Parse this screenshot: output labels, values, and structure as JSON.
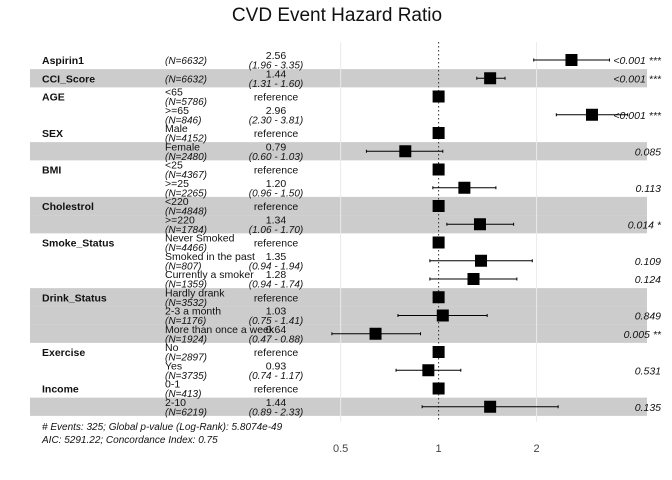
{
  "chart_data": {
    "type": "forest",
    "title": "CVD Event Hazard Ratio",
    "x_scale": "log",
    "xlim": [
      0.42,
      3.2
    ],
    "reference_line": 1,
    "x_ticks": [
      {
        "value": 0.5,
        "label": "0.5"
      },
      {
        "value": 1,
        "label": "1"
      },
      {
        "value": 2,
        "label": "2"
      }
    ],
    "shade_color": "#cccccc",
    "rows": [
      {
        "var": "Aspirin1",
        "level": "",
        "n": "(N=6632)",
        "est": "2.56",
        "ci": "(1.96 - 3.35)",
        "hr": 2.56,
        "lo": 1.96,
        "hi": 3.35,
        "p": "<0.001 ***",
        "ref": false,
        "shade": false
      },
      {
        "var": "CCI_Score",
        "level": "",
        "n": "(N=6632)",
        "est": "1.44",
        "ci": "(1.31 - 1.60)",
        "hr": 1.44,
        "lo": 1.31,
        "hi": 1.6,
        "p": "<0.001 ***",
        "ref": false,
        "shade": true
      },
      {
        "var": "AGE",
        "level": "<65",
        "n": "(N=5786)",
        "est": "reference",
        "ci": "",
        "hr": 1,
        "lo": null,
        "hi": null,
        "p": "",
        "ref": true,
        "shade": false
      },
      {
        "var": "",
        "level": ">=65",
        "n": "(N=846)",
        "est": "2.96",
        "ci": "(2.30 - 3.81)",
        "hr": 2.96,
        "lo": 2.3,
        "hi": 3.81,
        "p": "<0.001 ***",
        "ref": false,
        "shade": false
      },
      {
        "var": "SEX",
        "level": "Male",
        "n": "(N=4152)",
        "est": "reference",
        "ci": "",
        "hr": 1,
        "lo": null,
        "hi": null,
        "p": "",
        "ref": true,
        "shade": false
      },
      {
        "var": "",
        "level": "Female",
        "n": "(N=2480)",
        "est": "0.79",
        "ci": "(0.60 - 1.03)",
        "hr": 0.79,
        "lo": 0.6,
        "hi": 1.03,
        "p": "0.085",
        "ref": false,
        "shade": true
      },
      {
        "var": "BMI",
        "level": "<25",
        "n": "(N=4367)",
        "est": "reference",
        "ci": "",
        "hr": 1,
        "lo": null,
        "hi": null,
        "p": "",
        "ref": true,
        "shade": false
      },
      {
        "var": "",
        "level": ">=25",
        "n": "(N=2265)",
        "est": "1.20",
        "ci": "(0.96 - 1.50)",
        "hr": 1.2,
        "lo": 0.96,
        "hi": 1.5,
        "p": "0.113",
        "ref": false,
        "shade": false
      },
      {
        "var": "Cholestrol",
        "level": "<220",
        "n": "(N=4848)",
        "est": "reference",
        "ci": "",
        "hr": 1,
        "lo": null,
        "hi": null,
        "p": "",
        "ref": true,
        "shade": true
      },
      {
        "var": "",
        "level": ">=220",
        "n": "(N=1784)",
        "est": "1.34",
        "ci": "(1.06 - 1.70)",
        "hr": 1.34,
        "lo": 1.06,
        "hi": 1.7,
        "p": "0.014 *",
        "ref": false,
        "shade": true
      },
      {
        "var": "Smoke_Status",
        "level": "Never Smoked",
        "n": "(N=4466)",
        "est": "reference",
        "ci": "",
        "hr": 1,
        "lo": null,
        "hi": null,
        "p": "",
        "ref": true,
        "shade": false
      },
      {
        "var": "",
        "level": "Smoked in the past",
        "n": "(N=807)",
        "est": "1.35",
        "ci": "(0.94 - 1.94)",
        "hr": 1.35,
        "lo": 0.94,
        "hi": 1.94,
        "p": "0.109",
        "ref": false,
        "shade": false
      },
      {
        "var": "",
        "level": "Currently a smoker",
        "n": "(N=1359)",
        "est": "1.28",
        "ci": "(0.94 - 1.74)",
        "hr": 1.28,
        "lo": 0.94,
        "hi": 1.74,
        "p": "0.124",
        "ref": false,
        "shade": false
      },
      {
        "var": "Drink_Status",
        "level": "Hardly drank",
        "n": "(N=3532)",
        "est": "reference",
        "ci": "",
        "hr": 1,
        "lo": null,
        "hi": null,
        "p": "",
        "ref": true,
        "shade": true
      },
      {
        "var": "",
        "level": "2-3 a month",
        "n": "(N=1176)",
        "est": "1.03",
        "ci": "(0.75 - 1.41)",
        "hr": 1.03,
        "lo": 0.75,
        "hi": 1.41,
        "p": "0.849",
        "ref": false,
        "shade": true
      },
      {
        "var": "",
        "level": "More than once a week",
        "n": "(N=1924)",
        "est": "0.64",
        "ci": "(0.47 - 0.88)",
        "hr": 0.64,
        "lo": 0.47,
        "hi": 0.88,
        "p": "0.005 **",
        "ref": false,
        "shade": true
      },
      {
        "var": "Exercise",
        "level": "No",
        "n": "(N=2897)",
        "est": "reference",
        "ci": "",
        "hr": 1,
        "lo": null,
        "hi": null,
        "p": "",
        "ref": true,
        "shade": false
      },
      {
        "var": "",
        "level": "Yes",
        "n": "(N=3735)",
        "est": "0.93",
        "ci": "(0.74 - 1.17)",
        "hr": 0.93,
        "lo": 0.74,
        "hi": 1.17,
        "p": "0.531",
        "ref": false,
        "shade": false
      },
      {
        "var": "Income",
        "level": "0-1",
        "n": "(N=413)",
        "est": "reference",
        "ci": "",
        "hr": 1,
        "lo": null,
        "hi": null,
        "p": "",
        "ref": true,
        "shade": false
      },
      {
        "var": "",
        "level": "2-10",
        "n": "(N=6219)",
        "est": "1.44",
        "ci": "(0.89 - 2.33)",
        "hr": 1.44,
        "lo": 0.89,
        "hi": 2.33,
        "p": "0.135",
        "ref": false,
        "shade": true
      }
    ],
    "footnotes": [
      "# Events: 325; Global p-value (Log-Rank): 5.8074e-49",
      "AIC: 5291.22; Concordance Index: 0.75"
    ]
  }
}
